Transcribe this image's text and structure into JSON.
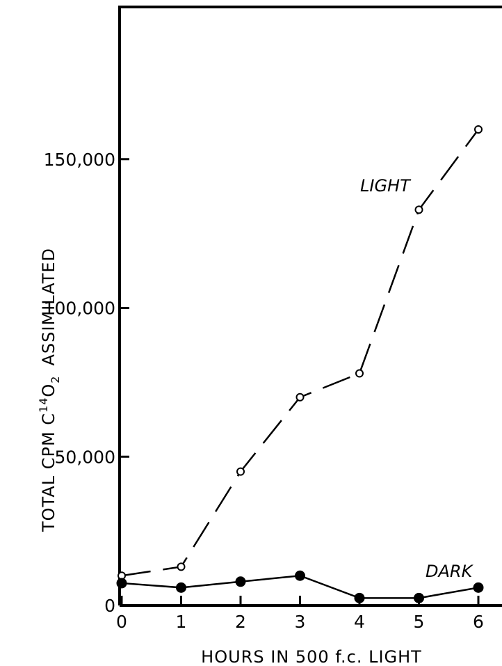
{
  "chart_data": {
    "type": "line",
    "xlabel": "HOURS IN 500 f.c. LIGHT",
    "ylabel_prefix": "TOTAL CPM C",
    "ylabel_sup": "14",
    "ylabel_mid": "O",
    "ylabel_sub": "2",
    "ylabel_suffix": "ASSIMILATED",
    "xlim": [
      0,
      6.4
    ],
    "ylim": [
      0,
      200000
    ],
    "xticks": [
      0,
      1,
      2,
      3,
      4,
      5,
      6
    ],
    "xtick_labels": [
      "0",
      "1",
      "2",
      "3",
      "4",
      "5",
      "6"
    ],
    "yticks": [
      0,
      50000,
      100000,
      150000
    ],
    "ytick_labels": [
      "0",
      "50,000",
      "100,000",
      "150,000"
    ],
    "series": [
      {
        "name": "LIGHT",
        "marker": "open-circle",
        "line": "dashed",
        "color": "#000000",
        "x": [
          0,
          1,
          2,
          3,
          4,
          5,
          6
        ],
        "y": [
          10000,
          13000,
          45000,
          70000,
          78000,
          133000,
          160000
        ]
      },
      {
        "name": "DARK",
        "marker": "filled-circle",
        "line": "solid",
        "color": "#000000",
        "x": [
          0,
          1,
          2,
          3,
          4,
          5,
          6
        ],
        "y": [
          7500,
          6000,
          8000,
          10000,
          2500,
          2500,
          6000
        ]
      }
    ],
    "grid": false
  }
}
